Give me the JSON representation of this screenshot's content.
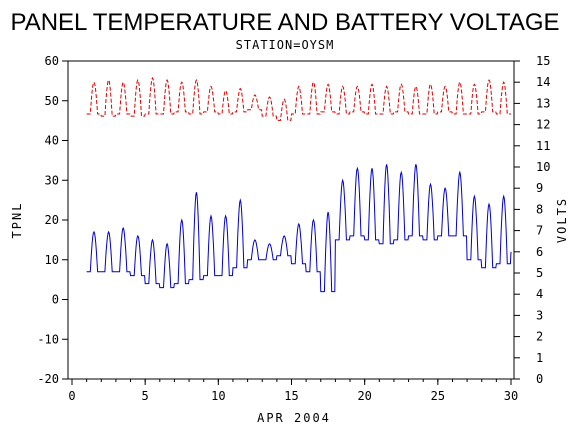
{
  "chart_data": {
    "type": "line",
    "title": "PANEL TEMPERATURE AND BATTERY VOLTAGE",
    "subtitle": "STATION=OYSM",
    "xlabel": "APR 2004",
    "ylabel_left": "TPNL",
    "ylabel_right": "VOLTS",
    "xlim": [
      0,
      30
    ],
    "ylim_left": [
      -20,
      60
    ],
    "ylim_right": [
      0,
      15
    ],
    "x_ticks": [
      "0",
      "5",
      "10",
      "15",
      "20",
      "25",
      "30"
    ],
    "y_ticks_left": [
      "-20",
      "-10",
      "0",
      "10",
      "20",
      "30",
      "40",
      "50",
      "60"
    ],
    "y_ticks_right": [
      "0",
      "1",
      "2",
      "3",
      "4",
      "5",
      "6",
      "7",
      "8",
      "9",
      "10",
      "11",
      "12",
      "13",
      "14",
      "15"
    ],
    "grid": false,
    "series": [
      {
        "axis": "left",
        "color": "#0000cc",
        "style": "solid",
        "daily_min": [
          7,
          7,
          7,
          6,
          4,
          3,
          4,
          5,
          6,
          6,
          8,
          10,
          10,
          11,
          9,
          7,
          2,
          15,
          16,
          15,
          14,
          15,
          16,
          15,
          16,
          16,
          10,
          8,
          9,
          12
        ],
        "daily_max": [
          17,
          17,
          18,
          16,
          15,
          14,
          20,
          27,
          21,
          21,
          25,
          15,
          14,
          16,
          19,
          20,
          22,
          30,
          33,
          33,
          34,
          32,
          34,
          29,
          28,
          32,
          26,
          24,
          26,
          22
        ]
      },
      {
        "axis": "right",
        "color": "#dd0000",
        "style": "dashed",
        "daily_min": [
          12.5,
          12.4,
          12.5,
          12.4,
          12.5,
          12.5,
          12.6,
          12.5,
          12.6,
          12.5,
          12.6,
          12.7,
          12.4,
          12.2,
          12.5,
          12.5,
          12.6,
          12.5,
          12.6,
          12.5,
          12.5,
          12.6,
          12.5,
          12.5,
          12.6,
          12.5,
          12.5,
          12.6,
          12.5,
          12.5
        ],
        "daily_max": [
          14.0,
          14.1,
          14.0,
          14.1,
          14.2,
          14.1,
          14.0,
          14.1,
          13.8,
          13.6,
          13.7,
          13.4,
          13.3,
          13.2,
          13.8,
          14.0,
          13.9,
          13.8,
          13.8,
          13.9,
          13.8,
          13.9,
          13.8,
          13.9,
          13.8,
          14.0,
          13.9,
          14.1,
          14.0,
          13.6
        ]
      }
    ]
  }
}
